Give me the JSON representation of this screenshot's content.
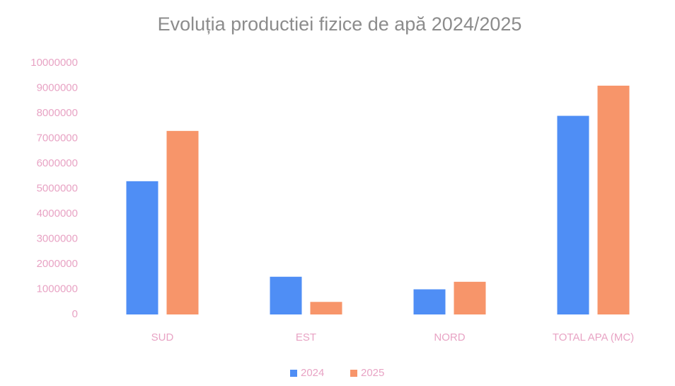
{
  "chart_data": {
    "type": "bar",
    "title": "Evoluția productiei fizice de apă 2024/2025",
    "categories": [
      "SUD",
      "EST",
      "NORD",
      "TOTAL APA (MC)"
    ],
    "series": [
      {
        "name": "2024",
        "color": "#4f8ef5",
        "values": [
          5300000,
          1500000,
          1000000,
          7900000
        ]
      },
      {
        "name": "2025",
        "color": "#f7956a",
        "values": [
          7300000,
          500000,
          1300000,
          9100000
        ]
      }
    ],
    "ylim": [
      0,
      10000000
    ],
    "yticks": [
      0,
      1000000,
      2000000,
      3000000,
      4000000,
      5000000,
      6000000,
      7000000,
      8000000,
      9000000,
      10000000
    ],
    "grid": false,
    "legend": "bottom"
  }
}
